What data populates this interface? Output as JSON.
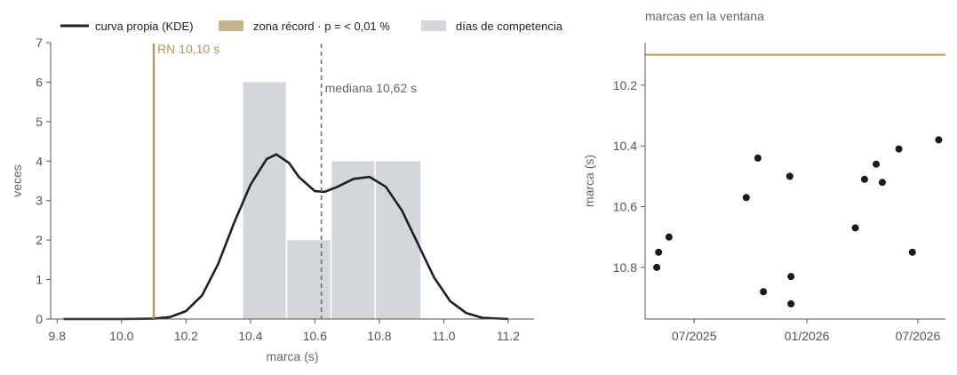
{
  "legend": [
    {
      "label": "curva propia (KDE)",
      "color": "#1f1f1f",
      "kind": "line"
    },
    {
      "label": "zona récord · p = < 0,01 %",
      "color": "#c8b48a",
      "kind": "patch"
    },
    {
      "label": "días de competencia",
      "color": "#d3d6da",
      "kind": "patch"
    }
  ],
  "chart_data": [
    {
      "type": "histogram",
      "xlabel": "marca (s)",
      "ylabel": "veces",
      "xlim": [
        9.78,
        11.28
      ],
      "ylim": [
        0,
        7
      ],
      "xticks": [
        "9.8",
        "10.0",
        "10.2",
        "10.4",
        "10.6",
        "10.8",
        "11.0",
        "11.2"
      ],
      "xtick_values": [
        9.8,
        10.0,
        10.2,
        10.4,
        10.6,
        10.8,
        11.0,
        11.2
      ],
      "yticks": [
        "0",
        "1",
        "2",
        "3",
        "4",
        "5",
        "6",
        "7"
      ],
      "ytick_values": [
        0,
        1,
        2,
        3,
        4,
        5,
        6,
        7
      ],
      "bins": [
        {
          "x0": 10.375,
          "x1": 10.512,
          "count": 6
        },
        {
          "x0": 10.512,
          "x1": 10.65,
          "count": 2
        },
        {
          "x0": 10.65,
          "x1": 10.787,
          "count": 4
        },
        {
          "x0": 10.787,
          "x1": 10.93,
          "count": 4
        }
      ],
      "bar_color": "#d3d6da",
      "kde": {
        "x": [
          9.82,
          10.0,
          10.1,
          10.15,
          10.2,
          10.25,
          10.3,
          10.35,
          10.4,
          10.45,
          10.48,
          10.52,
          10.55,
          10.6,
          10.63,
          10.67,
          10.72,
          10.77,
          10.82,
          10.87,
          10.92,
          10.97,
          11.02,
          11.07,
          11.12,
          11.2
        ],
        "y": [
          0,
          0,
          0.01,
          0.05,
          0.2,
          0.6,
          1.4,
          2.45,
          3.4,
          4.05,
          4.17,
          3.95,
          3.6,
          3.24,
          3.22,
          3.35,
          3.55,
          3.6,
          3.35,
          2.75,
          1.9,
          1.05,
          0.45,
          0.15,
          0.03,
          0
        ],
        "color": "#1f1f1f"
      },
      "annotations": [
        {
          "label": "RN 10,10 s",
          "x": 10.1,
          "color": "#b89655",
          "style": "solid"
        },
        {
          "label": "mediana 10,62 s",
          "x": 10.62,
          "color": "#666666",
          "style": "dashed"
        }
      ]
    },
    {
      "type": "scatter",
      "title": "marcas en la ventana",
      "ylabel": "marca (s)",
      "xlabel": "",
      "y_inverted": true,
      "xlim": [
        "2025-04-12",
        "2026-08-15"
      ],
      "ylim": [
        10.06,
        10.97
      ],
      "xticks": [
        "07/2025",
        "01/2026",
        "07/2026"
      ],
      "xtick_values": [
        "2025-07-01",
        "2026-01-01",
        "2026-07-01"
      ],
      "yticks": [
        "10.2",
        "10.4",
        "10.6",
        "10.8"
      ],
      "ytick_values": [
        10.2,
        10.4,
        10.6,
        10.8
      ],
      "reference_line": {
        "y": 10.1,
        "color": "#c29a52"
      },
      "point_color": "#1a1a1a",
      "points": [
        {
          "date": "2025-05-01",
          "y": 10.8
        },
        {
          "date": "2025-05-04",
          "y": 10.75
        },
        {
          "date": "2025-05-21",
          "y": 10.7
        },
        {
          "date": "2025-09-24",
          "y": 10.57
        },
        {
          "date": "2025-10-13",
          "y": 10.44
        },
        {
          "date": "2025-10-22",
          "y": 10.88
        },
        {
          "date": "2025-12-04",
          "y": 10.5
        },
        {
          "date": "2025-12-06",
          "y": 10.83
        },
        {
          "date": "2025-12-06",
          "y": 10.92
        },
        {
          "date": "2026-03-21",
          "y": 10.67
        },
        {
          "date": "2026-04-05",
          "y": 10.51
        },
        {
          "date": "2026-04-24",
          "y": 10.46
        },
        {
          "date": "2026-05-04",
          "y": 10.52
        },
        {
          "date": "2026-05-31",
          "y": 10.41
        },
        {
          "date": "2026-06-22",
          "y": 10.75
        },
        {
          "date": "2026-08-04",
          "y": 10.38
        }
      ]
    }
  ]
}
